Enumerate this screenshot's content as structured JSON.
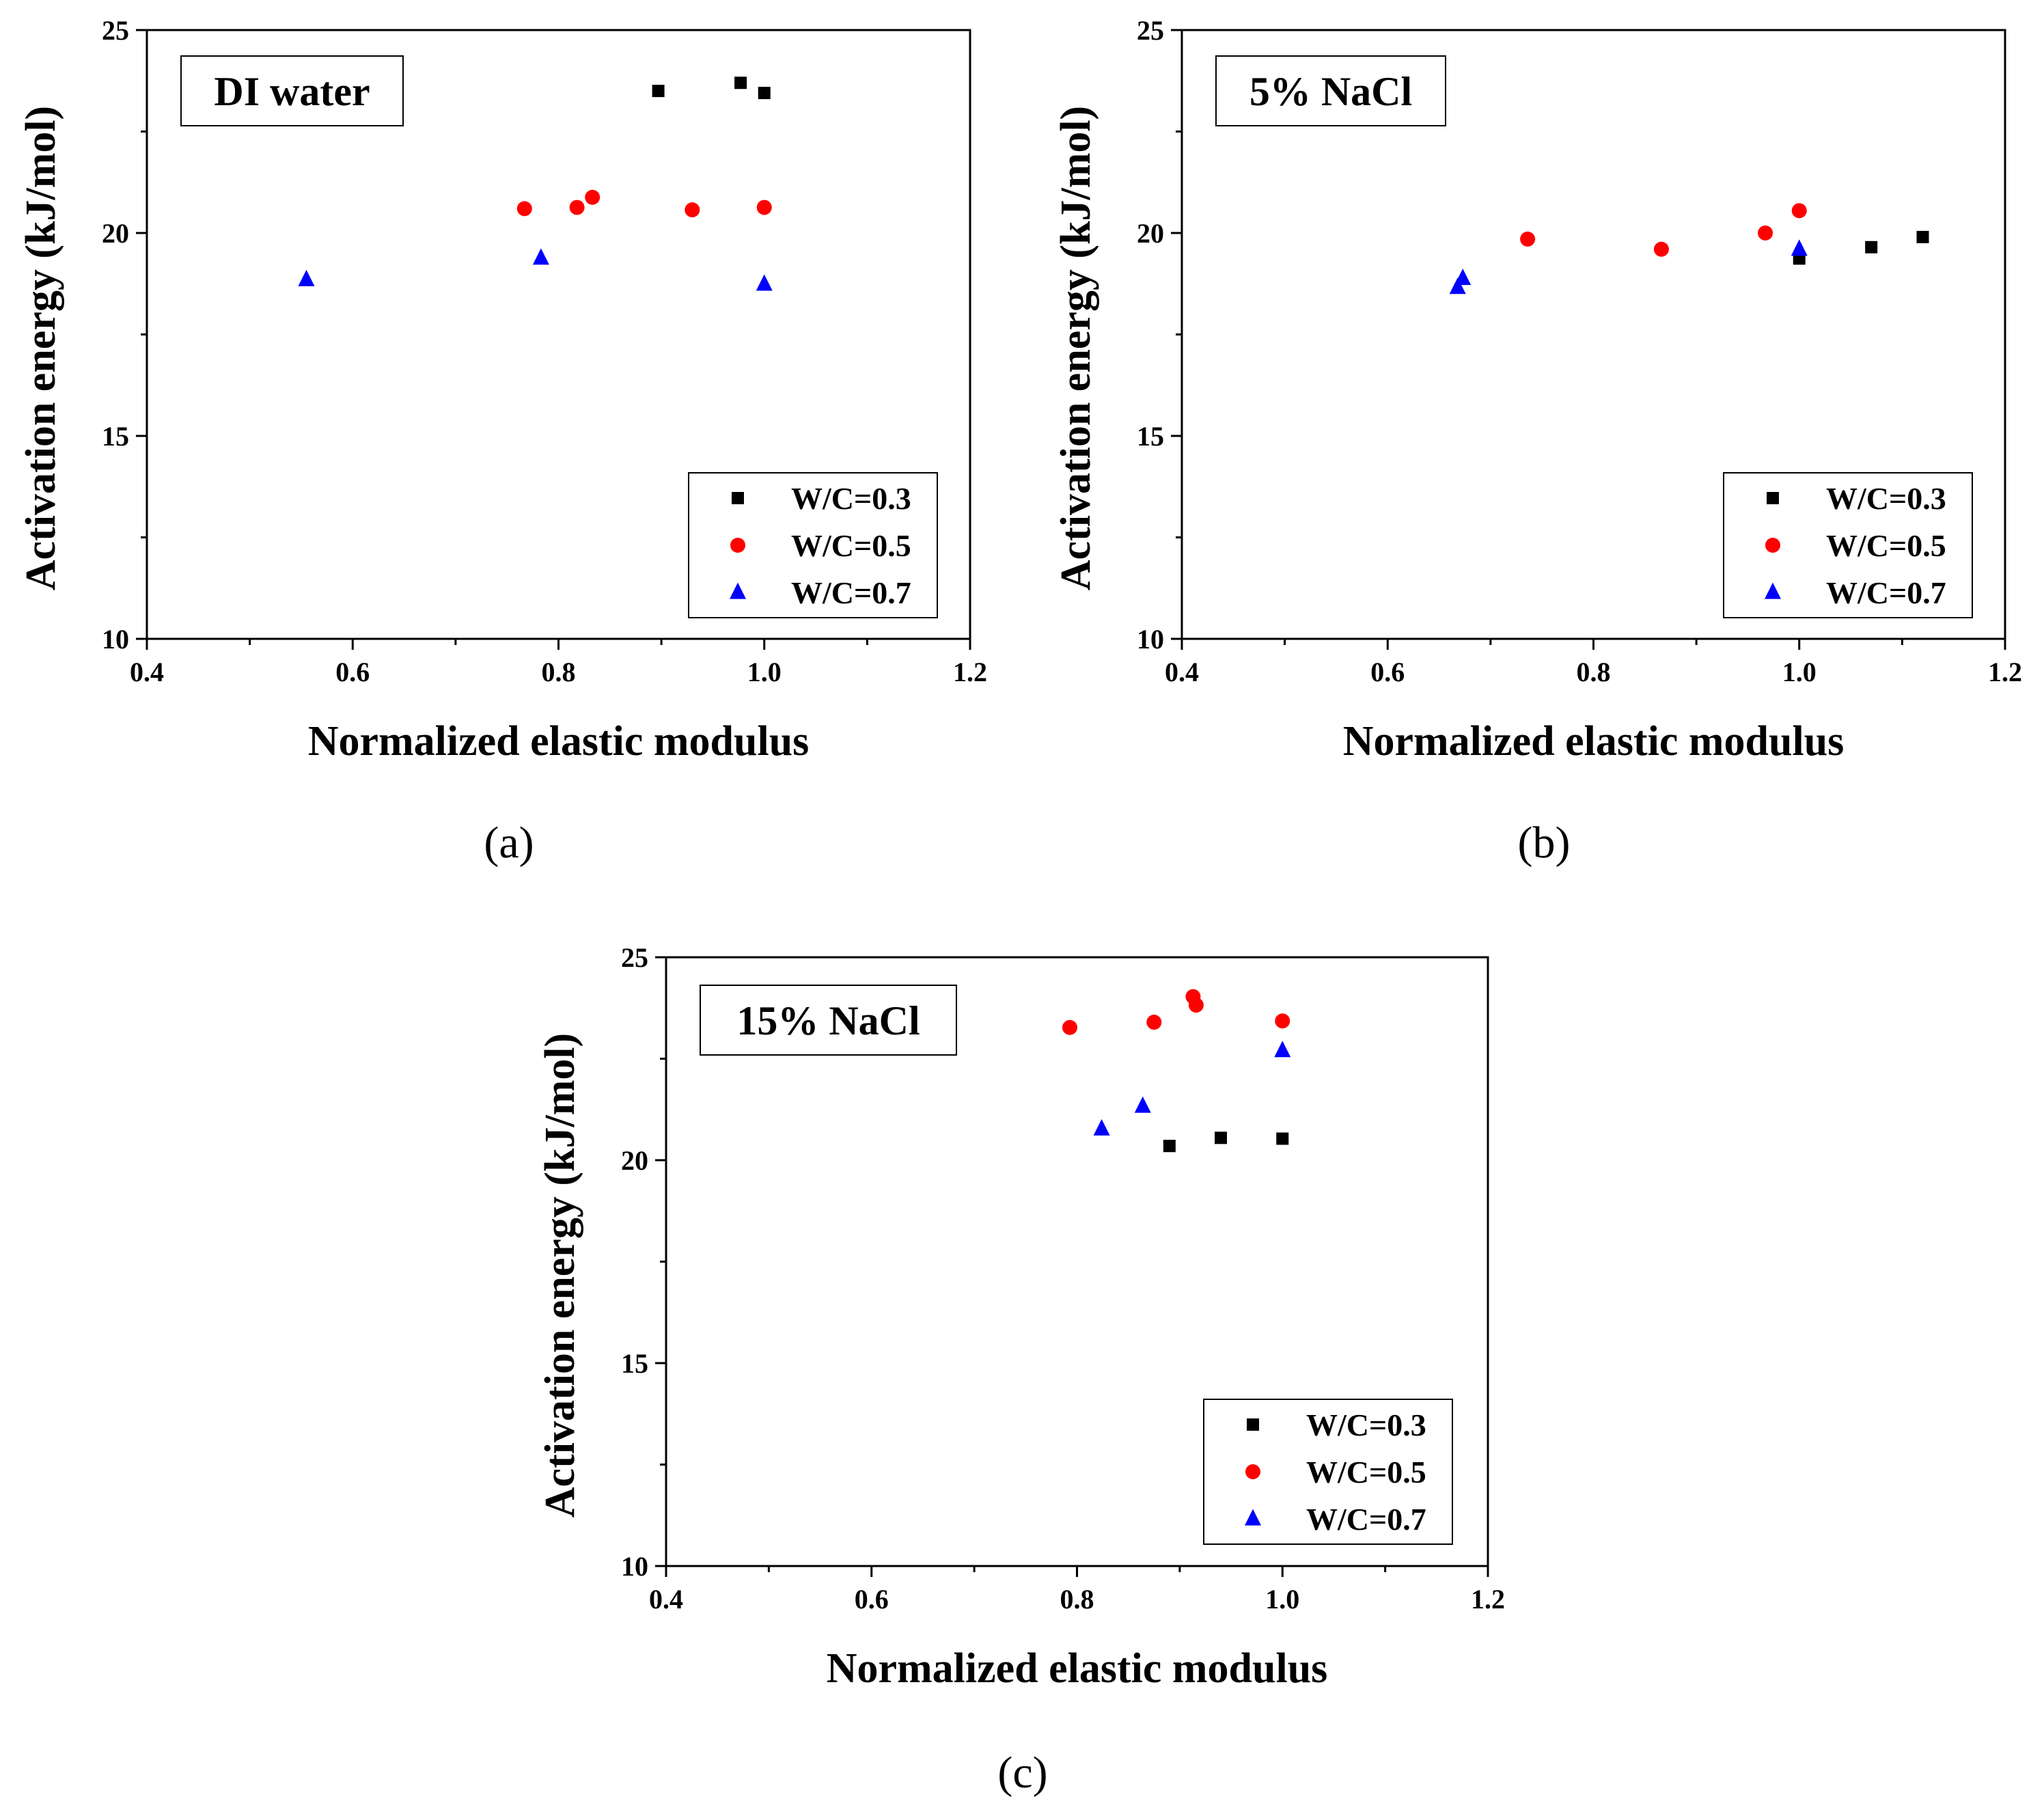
{
  "chart_data": [
    {
      "type": "scatter",
      "panel_label": "(a)",
      "annotation": "DI water",
      "xlabel": "Normalized elastic modulus",
      "ylabel": "Activation energy (kJ/mol)",
      "xlim": [
        0.4,
        1.2
      ],
      "ylim": [
        10,
        25
      ],
      "xticks": [
        0.4,
        0.6,
        0.8,
        1.0,
        1.2
      ],
      "xtick_labels": [
        "0.4",
        "0.6",
        "0.8",
        "1.0",
        "1.2"
      ],
      "yticks": [
        10,
        15,
        20,
        25
      ],
      "ytick_labels": [
        "10",
        "15",
        "20",
        "25"
      ],
      "legend_position": "bottom-right",
      "grid": false,
      "series": [
        {
          "name": "W/C=0.3",
          "marker": "square",
          "color": "#000000",
          "x": [
            0.897,
            0.977,
            1.0
          ],
          "y": [
            23.5,
            23.7,
            23.45
          ]
        },
        {
          "name": "W/C=0.5",
          "marker": "circle",
          "color": "#ff0000",
          "x": [
            0.767,
            0.818,
            0.833,
            0.93,
            1.0
          ],
          "y": [
            20.6,
            20.63,
            20.88,
            20.57,
            20.63
          ]
        },
        {
          "name": "W/C=0.7",
          "marker": "triangle",
          "color": "#0000ff",
          "x": [
            0.555,
            0.783,
            1.0
          ],
          "y": [
            18.85,
            19.38,
            18.74
          ]
        }
      ]
    },
    {
      "type": "scatter",
      "panel_label": "(b)",
      "annotation": "5% NaCl",
      "xlabel": "Normalized elastic modulus",
      "ylabel": "Activation energy (kJ/mol)",
      "xlim": [
        0.4,
        1.2
      ],
      "ylim": [
        10,
        25
      ],
      "xticks": [
        0.4,
        0.6,
        0.8,
        1.0,
        1.2
      ],
      "xtick_labels": [
        "0.4",
        "0.6",
        "0.8",
        "1.0",
        "1.2"
      ],
      "yticks": [
        10,
        15,
        20,
        25
      ],
      "ytick_labels": [
        "10",
        "15",
        "20",
        "25"
      ],
      "legend_position": "bottom-right",
      "grid": false,
      "series": [
        {
          "name": "W/C=0.3",
          "marker": "square",
          "color": "#000000",
          "x": [
            1.0,
            1.07,
            1.12
          ],
          "y": [
            19.37,
            19.65,
            19.9
          ]
        },
        {
          "name": "W/C=0.5",
          "marker": "circle",
          "color": "#ff0000",
          "x": [
            0.736,
            0.866,
            0.967,
            1.0
          ],
          "y": [
            19.85,
            19.6,
            20.0,
            20.55
          ]
        },
        {
          "name": "W/C=0.7",
          "marker": "triangle",
          "color": "#0000ff",
          "x": [
            0.668,
            0.673,
            1.0
          ],
          "y": [
            18.66,
            18.88,
            19.6
          ]
        }
      ]
    },
    {
      "type": "scatter",
      "panel_label": "(c)",
      "annotation": "15% NaCl",
      "xlabel": "Normalized elastic modulus",
      "ylabel": "Activation energy (kJ/mol)",
      "xlim": [
        0.4,
        1.2
      ],
      "ylim": [
        10,
        25
      ],
      "xticks": [
        0.4,
        0.6,
        0.8,
        1.0,
        1.2
      ],
      "xtick_labels": [
        "0.4",
        "0.6",
        "0.8",
        "1.0",
        "1.2"
      ],
      "yticks": [
        10,
        15,
        20,
        25
      ],
      "ytick_labels": [
        "10",
        "15",
        "20",
        "25"
      ],
      "legend_position": "bottom-right",
      "grid": false,
      "series": [
        {
          "name": "W/C=0.3",
          "marker": "square",
          "color": "#000000",
          "x": [
            0.89,
            0.94,
            1.0
          ],
          "y": [
            20.35,
            20.55,
            20.53
          ]
        },
        {
          "name": "W/C=0.5",
          "marker": "circle",
          "color": "#ff0000",
          "x": [
            0.793,
            0.875,
            0.913,
            0.916,
            1.0
          ],
          "y": [
            23.27,
            23.4,
            24.03,
            23.82,
            23.43
          ]
        },
        {
          "name": "W/C=0.7",
          "marker": "triangle",
          "color": "#0000ff",
          "x": [
            0.824,
            0.864,
            1.0
          ],
          "y": [
            20.77,
            21.33,
            22.7
          ]
        }
      ]
    }
  ]
}
